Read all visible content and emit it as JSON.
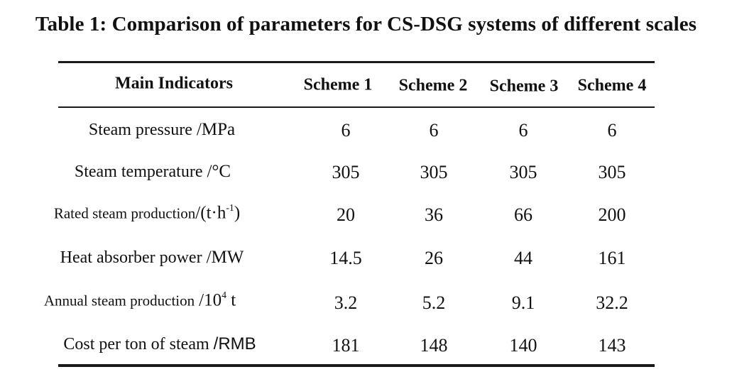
{
  "caption": "Table 1: Comparison of parameters for CS-DSG systems of different scales",
  "table": {
    "columns": [
      "Main Indicators",
      "Scheme 1",
      "Scheme 2",
      "Scheme 3",
      "Scheme 4"
    ],
    "rows": [
      {
        "label": "Steam pressure",
        "unit": "/MPa",
        "values": [
          "6",
          "6",
          "6",
          "6"
        ]
      },
      {
        "label": "Steam temperature",
        "unit": "/°C",
        "values": [
          "305",
          "305",
          "305",
          "305"
        ]
      },
      {
        "label": "Rated steam production",
        "unit_prefix": "/(t·h",
        "unit_sup": "-1",
        "unit_suffix": ")",
        "values": [
          "20",
          "36",
          "66",
          "200"
        ]
      },
      {
        "label": "Heat absorber power",
        "unit": "/MW",
        "values": [
          "14.5",
          "26",
          "44",
          "161"
        ]
      },
      {
        "label": "Annual steam production",
        "unit_prefix": "/10",
        "unit_sup": "4",
        "unit_suffix": " t",
        "values": [
          "3.2",
          "5.2",
          "9.1",
          "32.2"
        ]
      },
      {
        "label": "Cost per ton of steam",
        "unit": "/RMB",
        "values": [
          "181",
          "148",
          "140",
          "143"
        ]
      }
    ]
  }
}
